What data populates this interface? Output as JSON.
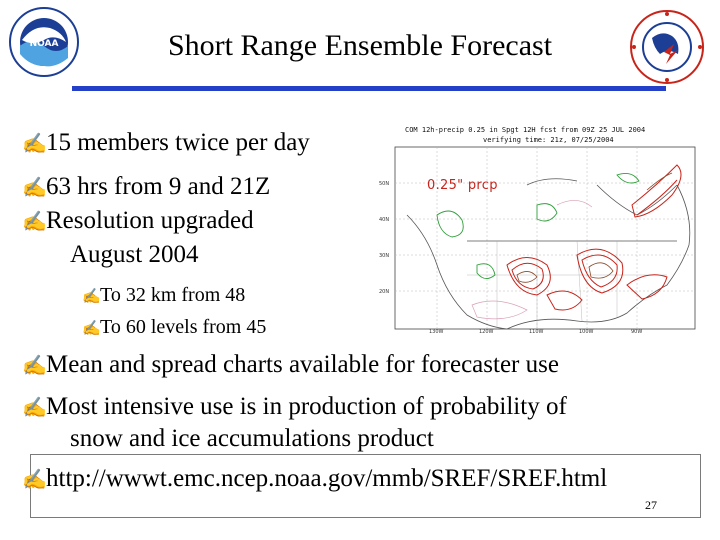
{
  "slide": {
    "title": "Short Range Ensemble Forecast",
    "bullet_glyph": "✍",
    "bullets": [
      "15 members twice per day",
      "63 hrs from 9 and 21Z",
      "Resolution upgraded"
    ],
    "bullet3_cont": "August 2004",
    "sub_bullets": [
      "To 32 km from 48",
      "To 60 levels from 45"
    ],
    "lower_bullets": [
      "Mean and spread charts available for forecaster use",
      "Most intensive use is in production of probability of"
    ],
    "lower_cont": "snow and ice accumulations product",
    "url": "http://wwwt.emc.ncep.noaa.gov/mmb/SREF/SREF.html",
    "page_number": "27",
    "map": {
      "header_line1": "COM 12h-precip 0.25 in Spgt 12H fcst from 09Z 25 JUL 2004",
      "header_line2": "verifying time: 21z, 07/25/2004",
      "label": "0.25\" prcp"
    },
    "colors": {
      "title_rule": "#2540c8",
      "map_label": "#c8241a"
    },
    "logos": [
      "noaa-logo",
      "national-weather-service-logo"
    ]
  }
}
